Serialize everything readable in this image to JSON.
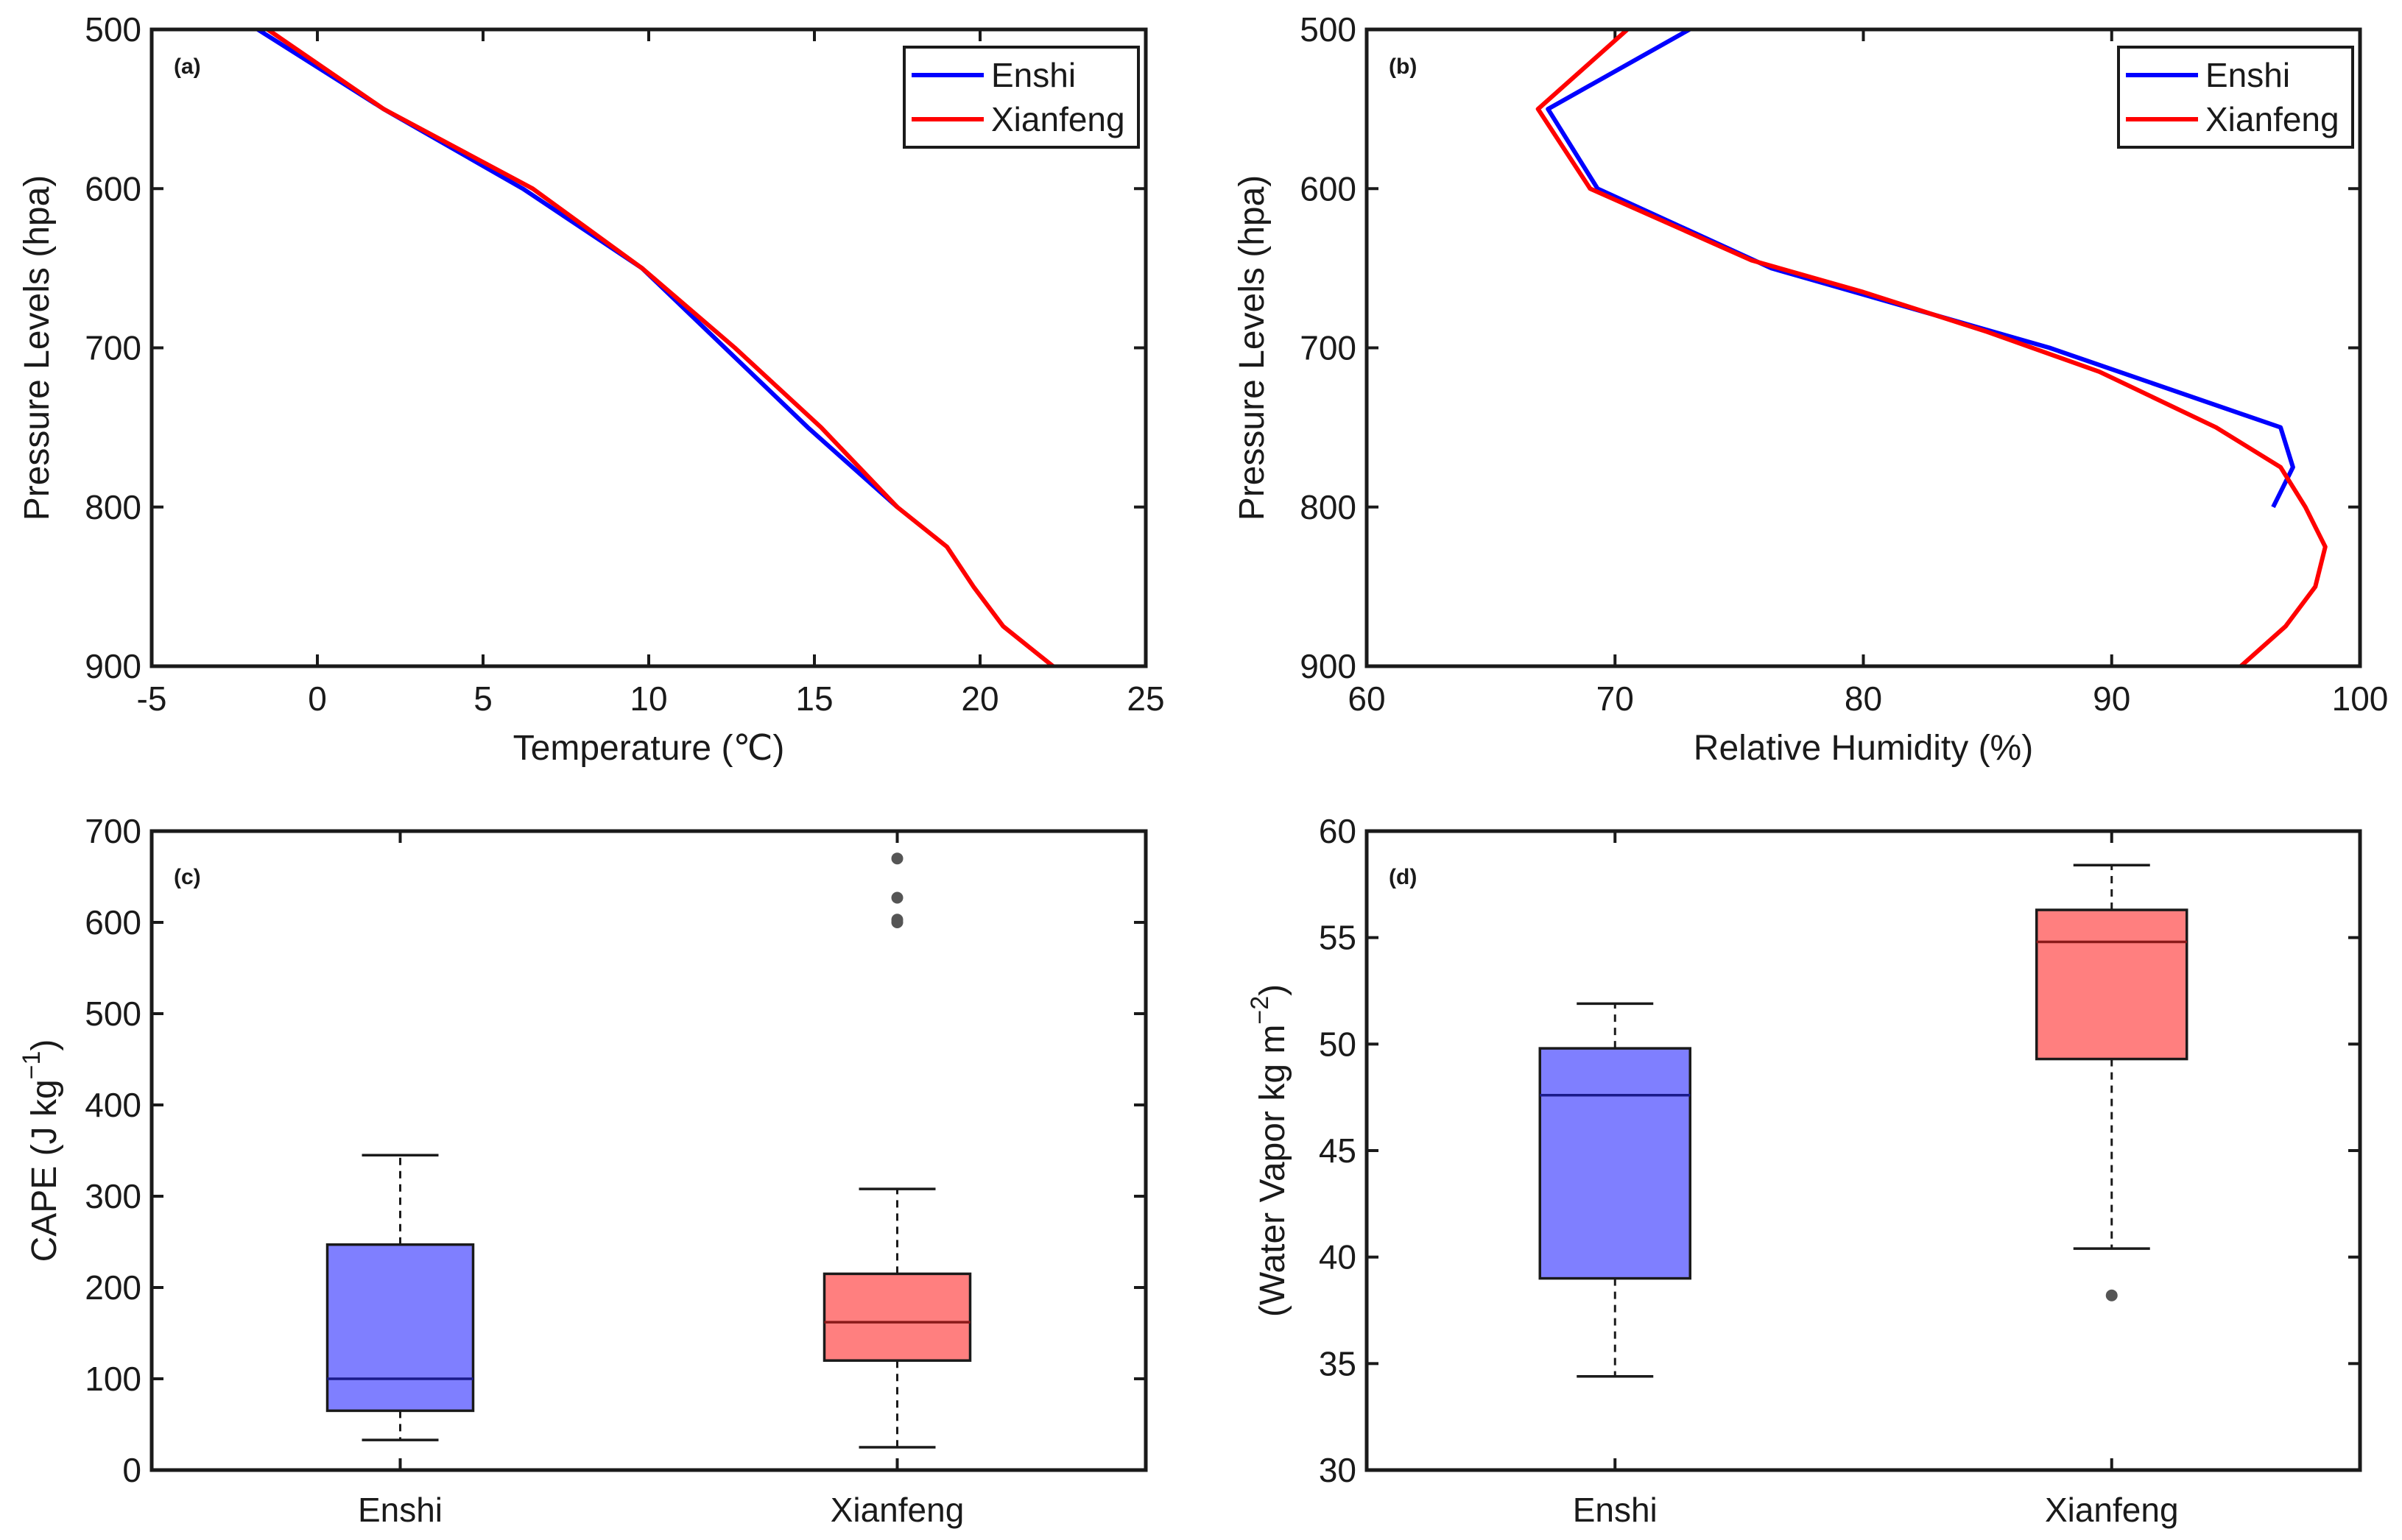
{
  "chart_data": [
    {
      "type": "line",
      "panel_label": "(a)",
      "xlabel": "Temperature (℃)",
      "ylabel": "Pressure Levels (hpa)",
      "xlim": [
        -5,
        25
      ],
      "ylim": [
        500,
        900
      ],
      "y_reversed": true,
      "xticks": [
        -5,
        0,
        5,
        10,
        15,
        20,
        25
      ],
      "yticks": [
        500,
        600,
        700,
        800,
        900
      ],
      "legend_position": "top-right",
      "series": [
        {
          "name": "Enshi",
          "color": "#0000ff",
          "x": [
            -1.8,
            2.0,
            6.2,
            9.8,
            12.3,
            14.8,
            17.5
          ],
          "y": [
            500,
            550,
            600,
            650,
            700,
            750,
            800
          ]
        },
        {
          "name": "Xianfeng",
          "color": "#ff0000",
          "x": [
            -1.5,
            2.0,
            6.5,
            9.8,
            12.6,
            15.2,
            17.5,
            19.0,
            19.8,
            20.7,
            22.2
          ],
          "y": [
            500,
            550,
            600,
            650,
            700,
            750,
            800,
            825,
            850,
            875,
            900
          ]
        }
      ]
    },
    {
      "type": "line",
      "panel_label": "(b)",
      "xlabel": "Relative Humidity (%)",
      "ylabel": "Pressure Levels (hpa)",
      "xlim": [
        60,
        100
      ],
      "ylim": [
        500,
        900
      ],
      "y_reversed": true,
      "xticks": [
        60,
        70,
        80,
        90,
        100
      ],
      "yticks": [
        500,
        600,
        700,
        800,
        900
      ],
      "legend_position": "top-right",
      "series": [
        {
          "name": "Enshi",
          "color": "#0000ff",
          "x": [
            73.0,
            67.3,
            69.3,
            76.3,
            87.5,
            96.8,
            97.3,
            96.5
          ],
          "y": [
            500,
            550,
            600,
            650,
            700,
            750,
            775,
            800
          ]
        },
        {
          "name": "Xianfeng",
          "color": "#ff0000",
          "x": [
            70.5,
            66.9,
            69.0,
            75.5,
            80.0,
            85.0,
            89.5,
            94.2,
            96.8,
            97.8,
            98.6,
            98.2,
            97.0,
            95.2
          ],
          "y": [
            500,
            550,
            600,
            645,
            665,
            690,
            715,
            750,
            775,
            800,
            825,
            850,
            875,
            900
          ]
        }
      ]
    },
    {
      "type": "box",
      "panel_label": "(c)",
      "xlabel": "",
      "ylabel": "CAPE (J kg",
      "ylabel_sup": "−1",
      "ylabel_close": ")",
      "ylim": [
        0,
        700
      ],
      "yticks": [
        0,
        100,
        200,
        300,
        400,
        500,
        600,
        700
      ],
      "categories": [
        "Enshi",
        "Xianfeng"
      ],
      "boxes": [
        {
          "name": "Enshi",
          "color": "#7f7fff",
          "whisker_low": 33,
          "q1": 65,
          "median": 100,
          "q3": 247,
          "whisker_high": 345,
          "outliers": []
        },
        {
          "name": "Xianfeng",
          "color": "#ff7f7f",
          "whisker_low": 25,
          "q1": 120,
          "median": 162,
          "q3": 215,
          "whisker_high": 308,
          "outliers": [
            600,
            603,
            627,
            670
          ]
        }
      ]
    },
    {
      "type": "box",
      "panel_label": "(d)",
      "xlabel": "",
      "ylabel": "(Water Vapor kg m",
      "ylabel_sup": "−2",
      "ylabel_close": ")",
      "ylim": [
        30,
        60
      ],
      "yticks": [
        30,
        35,
        40,
        45,
        50,
        55,
        60
      ],
      "categories": [
        "Enshi",
        "Xianfeng"
      ],
      "boxes": [
        {
          "name": "Enshi",
          "color": "#7f7fff",
          "whisker_low": 34.4,
          "q1": 39.0,
          "median": 47.6,
          "q3": 49.8,
          "whisker_high": 51.9,
          "outliers": []
        },
        {
          "name": "Xianfeng",
          "color": "#ff7f7f",
          "whisker_low": 40.4,
          "q1": 49.3,
          "median": 54.8,
          "q3": 56.3,
          "whisker_high": 58.4,
          "outliers": [
            38.2
          ]
        }
      ]
    }
  ]
}
